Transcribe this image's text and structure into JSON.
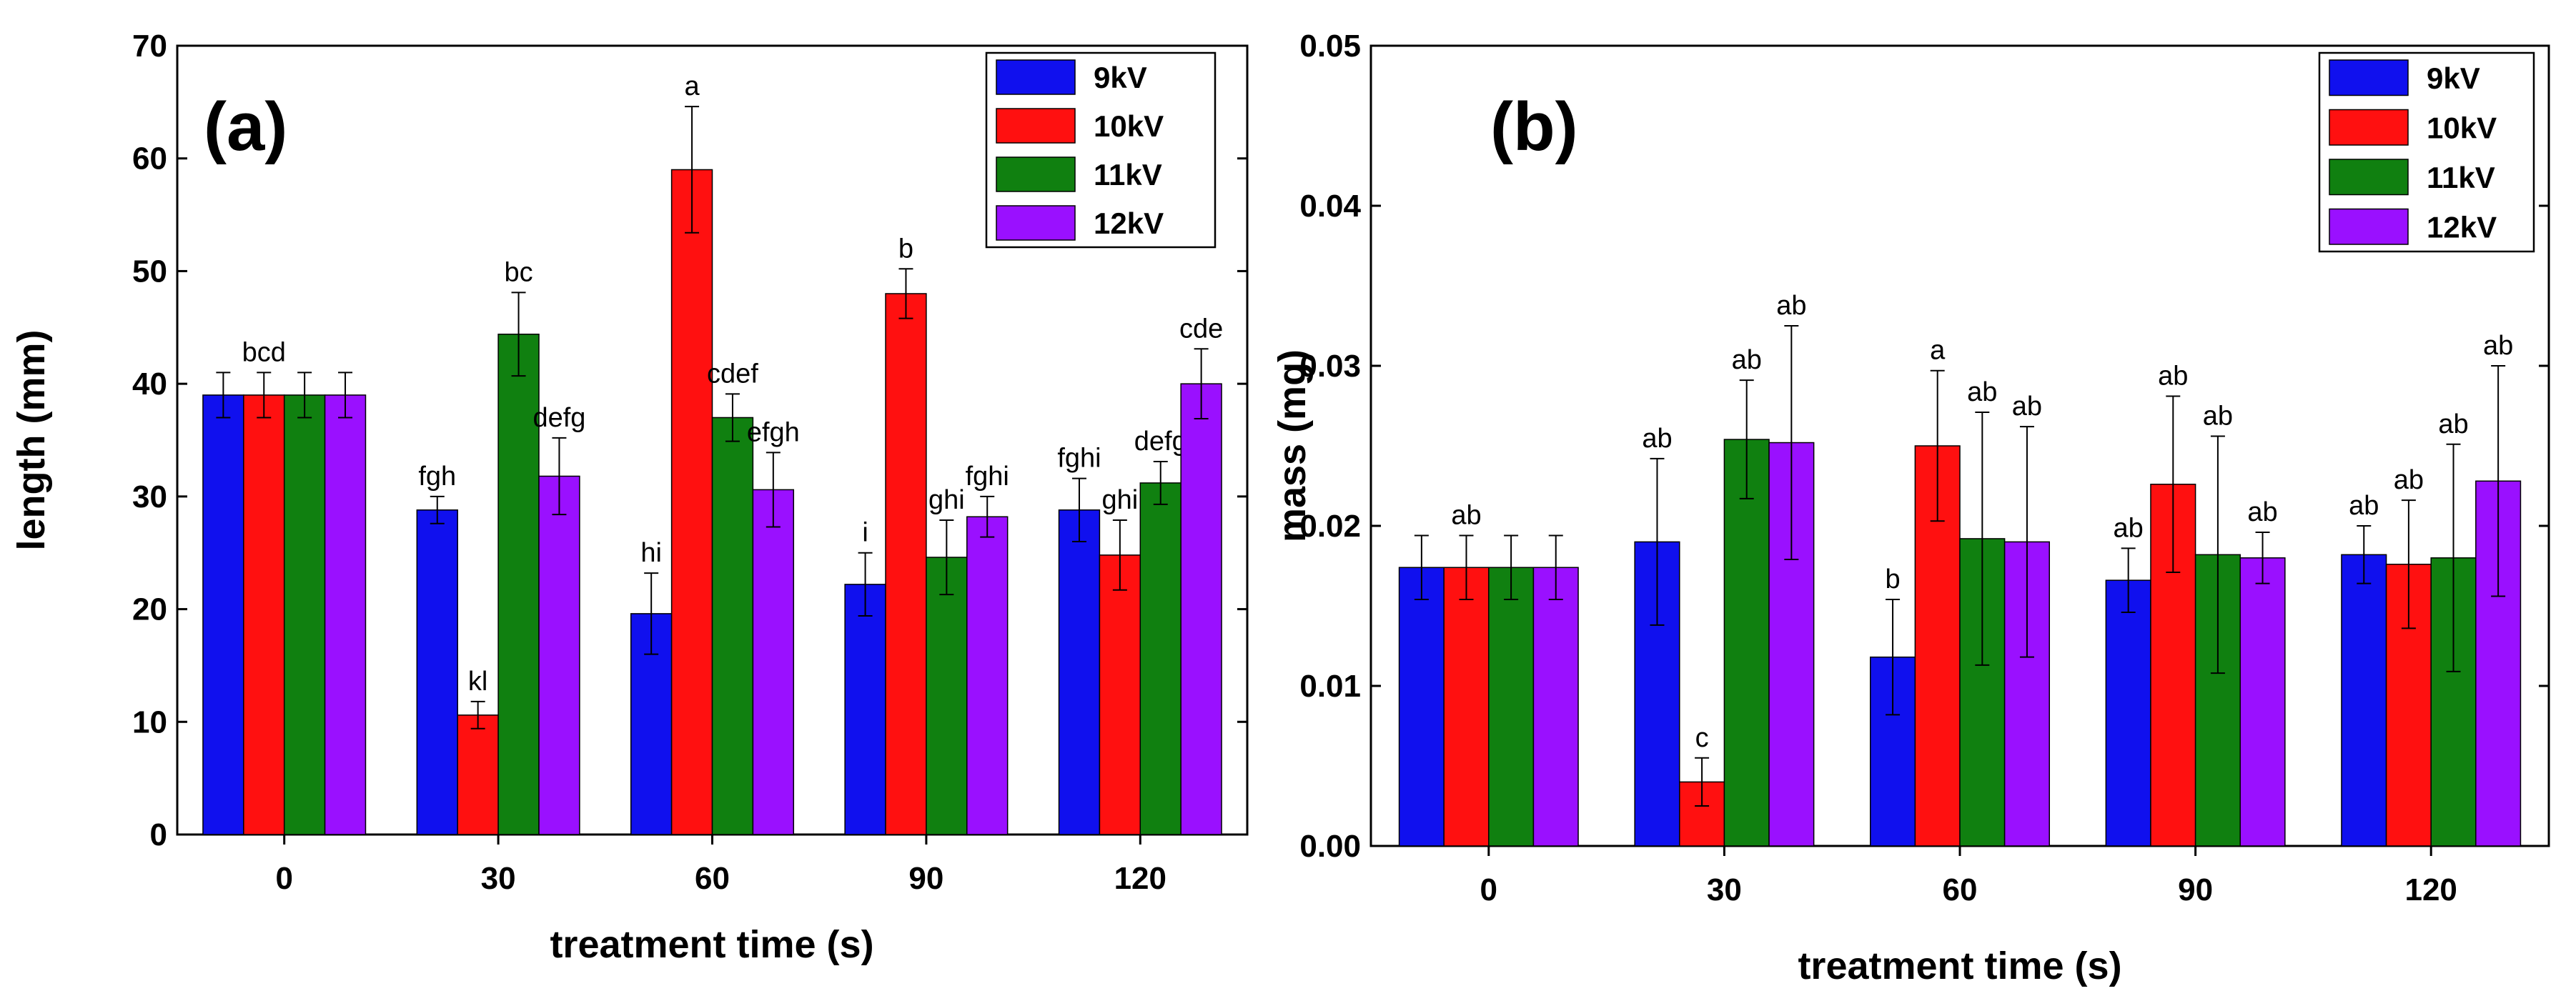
{
  "colors": {
    "9kV": "#1010ee",
    "10kV": "#ff1010",
    "11kV": "#108010",
    "12kV": "#9a10ff"
  },
  "chart_data": [
    {
      "type": "bar",
      "panel_label": "(a)",
      "xlabel": "treatment time (s)",
      "ylabel": "length (mm)",
      "ylim": [
        0,
        70
      ],
      "yticks": [
        0,
        10,
        20,
        30,
        40,
        50,
        60,
        70
      ],
      "categories": [
        "0",
        "30",
        "60",
        "90",
        "120"
      ],
      "legend_position": "top-right",
      "series": [
        {
          "name": "9kV",
          "values": [
            39,
            28.8,
            19.6,
            22.2,
            28.8
          ],
          "errors": [
            2,
            1.2,
            3.6,
            2.8,
            2.8
          ],
          "labels": [
            "",
            "fgh",
            "hi",
            "i",
            "fghi"
          ]
        },
        {
          "name": "10kV",
          "values": [
            39,
            10.6,
            59,
            48,
            24.8
          ],
          "errors": [
            2,
            1.2,
            5.6,
            2.2,
            3.1
          ],
          "labels": [
            "bcd",
            "kl",
            "a",
            "b",
            "ghi"
          ]
        },
        {
          "name": "11kV",
          "values": [
            39,
            44.4,
            37,
            24.6,
            31.2
          ],
          "errors": [
            2,
            3.7,
            2.1,
            3.3,
            1.9
          ],
          "labels": [
            "",
            "bc",
            "cdef",
            "ghi",
            "defg"
          ]
        },
        {
          "name": "12kV",
          "values": [
            39,
            31.8,
            30.6,
            28.2,
            40
          ],
          "errors": [
            2,
            3.4,
            3.3,
            1.8,
            3.1
          ],
          "labels": [
            "",
            "defg",
            "efgh",
            "fghi",
            "cde"
          ]
        }
      ]
    },
    {
      "type": "bar",
      "panel_label": "(b)",
      "xlabel": "treatment time (s)",
      "ylabel": "mass (mg)",
      "ylim": [
        0,
        0.05
      ],
      "yticks": [
        "0.00",
        "0.01",
        "0.02",
        "0.03",
        "0.04",
        "0.05"
      ],
      "categories": [
        "0",
        "30",
        "60",
        "90",
        "120"
      ],
      "legend_position": "top-right",
      "series": [
        {
          "name": "9kV",
          "values": [
            0.0174,
            0.019,
            0.0118,
            0.0166,
            0.0182
          ],
          "errors": [
            0.002,
            0.0052,
            0.0036,
            0.002,
            0.0018
          ],
          "labels": [
            "",
            "ab",
            "b",
            "ab",
            "ab"
          ]
        },
        {
          "name": "10kV",
          "values": [
            0.0174,
            0.004,
            0.025,
            0.0226,
            0.0176
          ],
          "errors": [
            0.002,
            0.0015,
            0.0047,
            0.0055,
            0.004
          ],
          "labels": [
            "ab",
            "c",
            "a",
            "ab",
            "ab"
          ]
        },
        {
          "name": "11kV",
          "values": [
            0.0174,
            0.0254,
            0.0192,
            0.0182,
            0.018
          ],
          "errors": [
            0.002,
            0.0037,
            0.0079,
            0.0074,
            0.0071
          ],
          "labels": [
            "",
            "ab",
            "ab",
            "ab",
            "ab"
          ]
        },
        {
          "name": "12kV",
          "values": [
            0.0174,
            0.0252,
            0.019,
            0.018,
            0.0228
          ],
          "errors": [
            0.002,
            0.0073,
            0.0072,
            0.0016,
            0.0072
          ],
          "labels": [
            "",
            "ab",
            "ab",
            "ab",
            "ab"
          ]
        }
      ]
    }
  ]
}
